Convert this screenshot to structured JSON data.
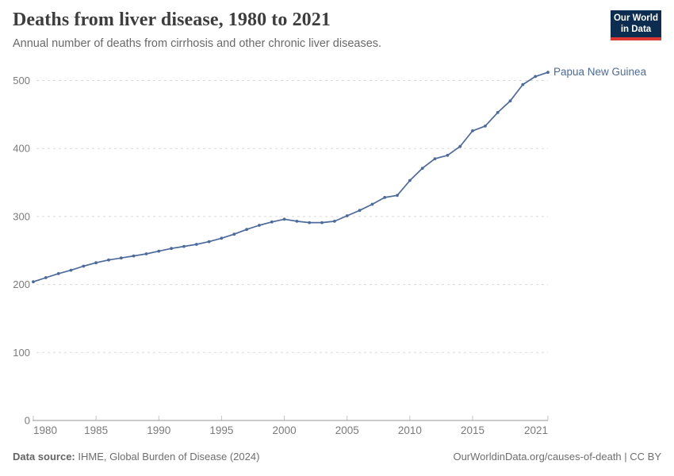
{
  "header": {
    "title": "Deaths from liver disease, 1980 to 2021",
    "subtitle": "Annual number of deaths from cirrhosis and other chronic liver diseases.",
    "logo": {
      "line1": "Our World",
      "line2": "in Data",
      "bg_color": "#0c2d4f",
      "bar_color": "#dc3832"
    }
  },
  "footer": {
    "source_label": "Data source:",
    "source_text": " IHME, Global Burden of Disease (2024)",
    "right_text": "OurWorldinData.org/causes-of-death | CC BY"
  },
  "chart_data": {
    "type": "line",
    "title": "Deaths from liver disease, 1980 to 2021",
    "xlabel": "",
    "ylabel": "",
    "xlim": [
      1980,
      2021
    ],
    "ylim": [
      0,
      500
    ],
    "x_ticks": [
      1980,
      1985,
      1990,
      1995,
      2000,
      2005,
      2010,
      2015,
      2021
    ],
    "y_ticks": [
      0,
      100,
      200,
      300,
      400,
      500
    ],
    "grid": "horizontal-dashed",
    "legend_position": "end-of-line-label",
    "x": [
      1980,
      1981,
      1982,
      1983,
      1984,
      1985,
      1986,
      1987,
      1988,
      1989,
      1990,
      1991,
      1992,
      1993,
      1994,
      1995,
      1996,
      1997,
      1998,
      1999,
      2000,
      2001,
      2002,
      2003,
      2004,
      2005,
      2006,
      2007,
      2008,
      2009,
      2010,
      2011,
      2012,
      2013,
      2014,
      2015,
      2016,
      2017,
      2018,
      2019,
      2020,
      2021
    ],
    "series": [
      {
        "name": "Papua New Guinea",
        "color": "#4C6A9C",
        "values": [
          204,
          210,
          216,
          221,
          227,
          232,
          236,
          239,
          242,
          245,
          249,
          253,
          256,
          259,
          263,
          268,
          274,
          281,
          287,
          292,
          296,
          293,
          291,
          291,
          293,
          301,
          309,
          318,
          328,
          331,
          353,
          371,
          385,
          390,
          403,
          426,
          433,
          453,
          470,
          494,
          506,
          512
        ]
      }
    ],
    "colors": {
      "gridline": "#d9d9d9",
      "axis_line": "#969696",
      "tick_mark": "#c6c6c6",
      "tick_label": "#7b7b7b"
    }
  }
}
